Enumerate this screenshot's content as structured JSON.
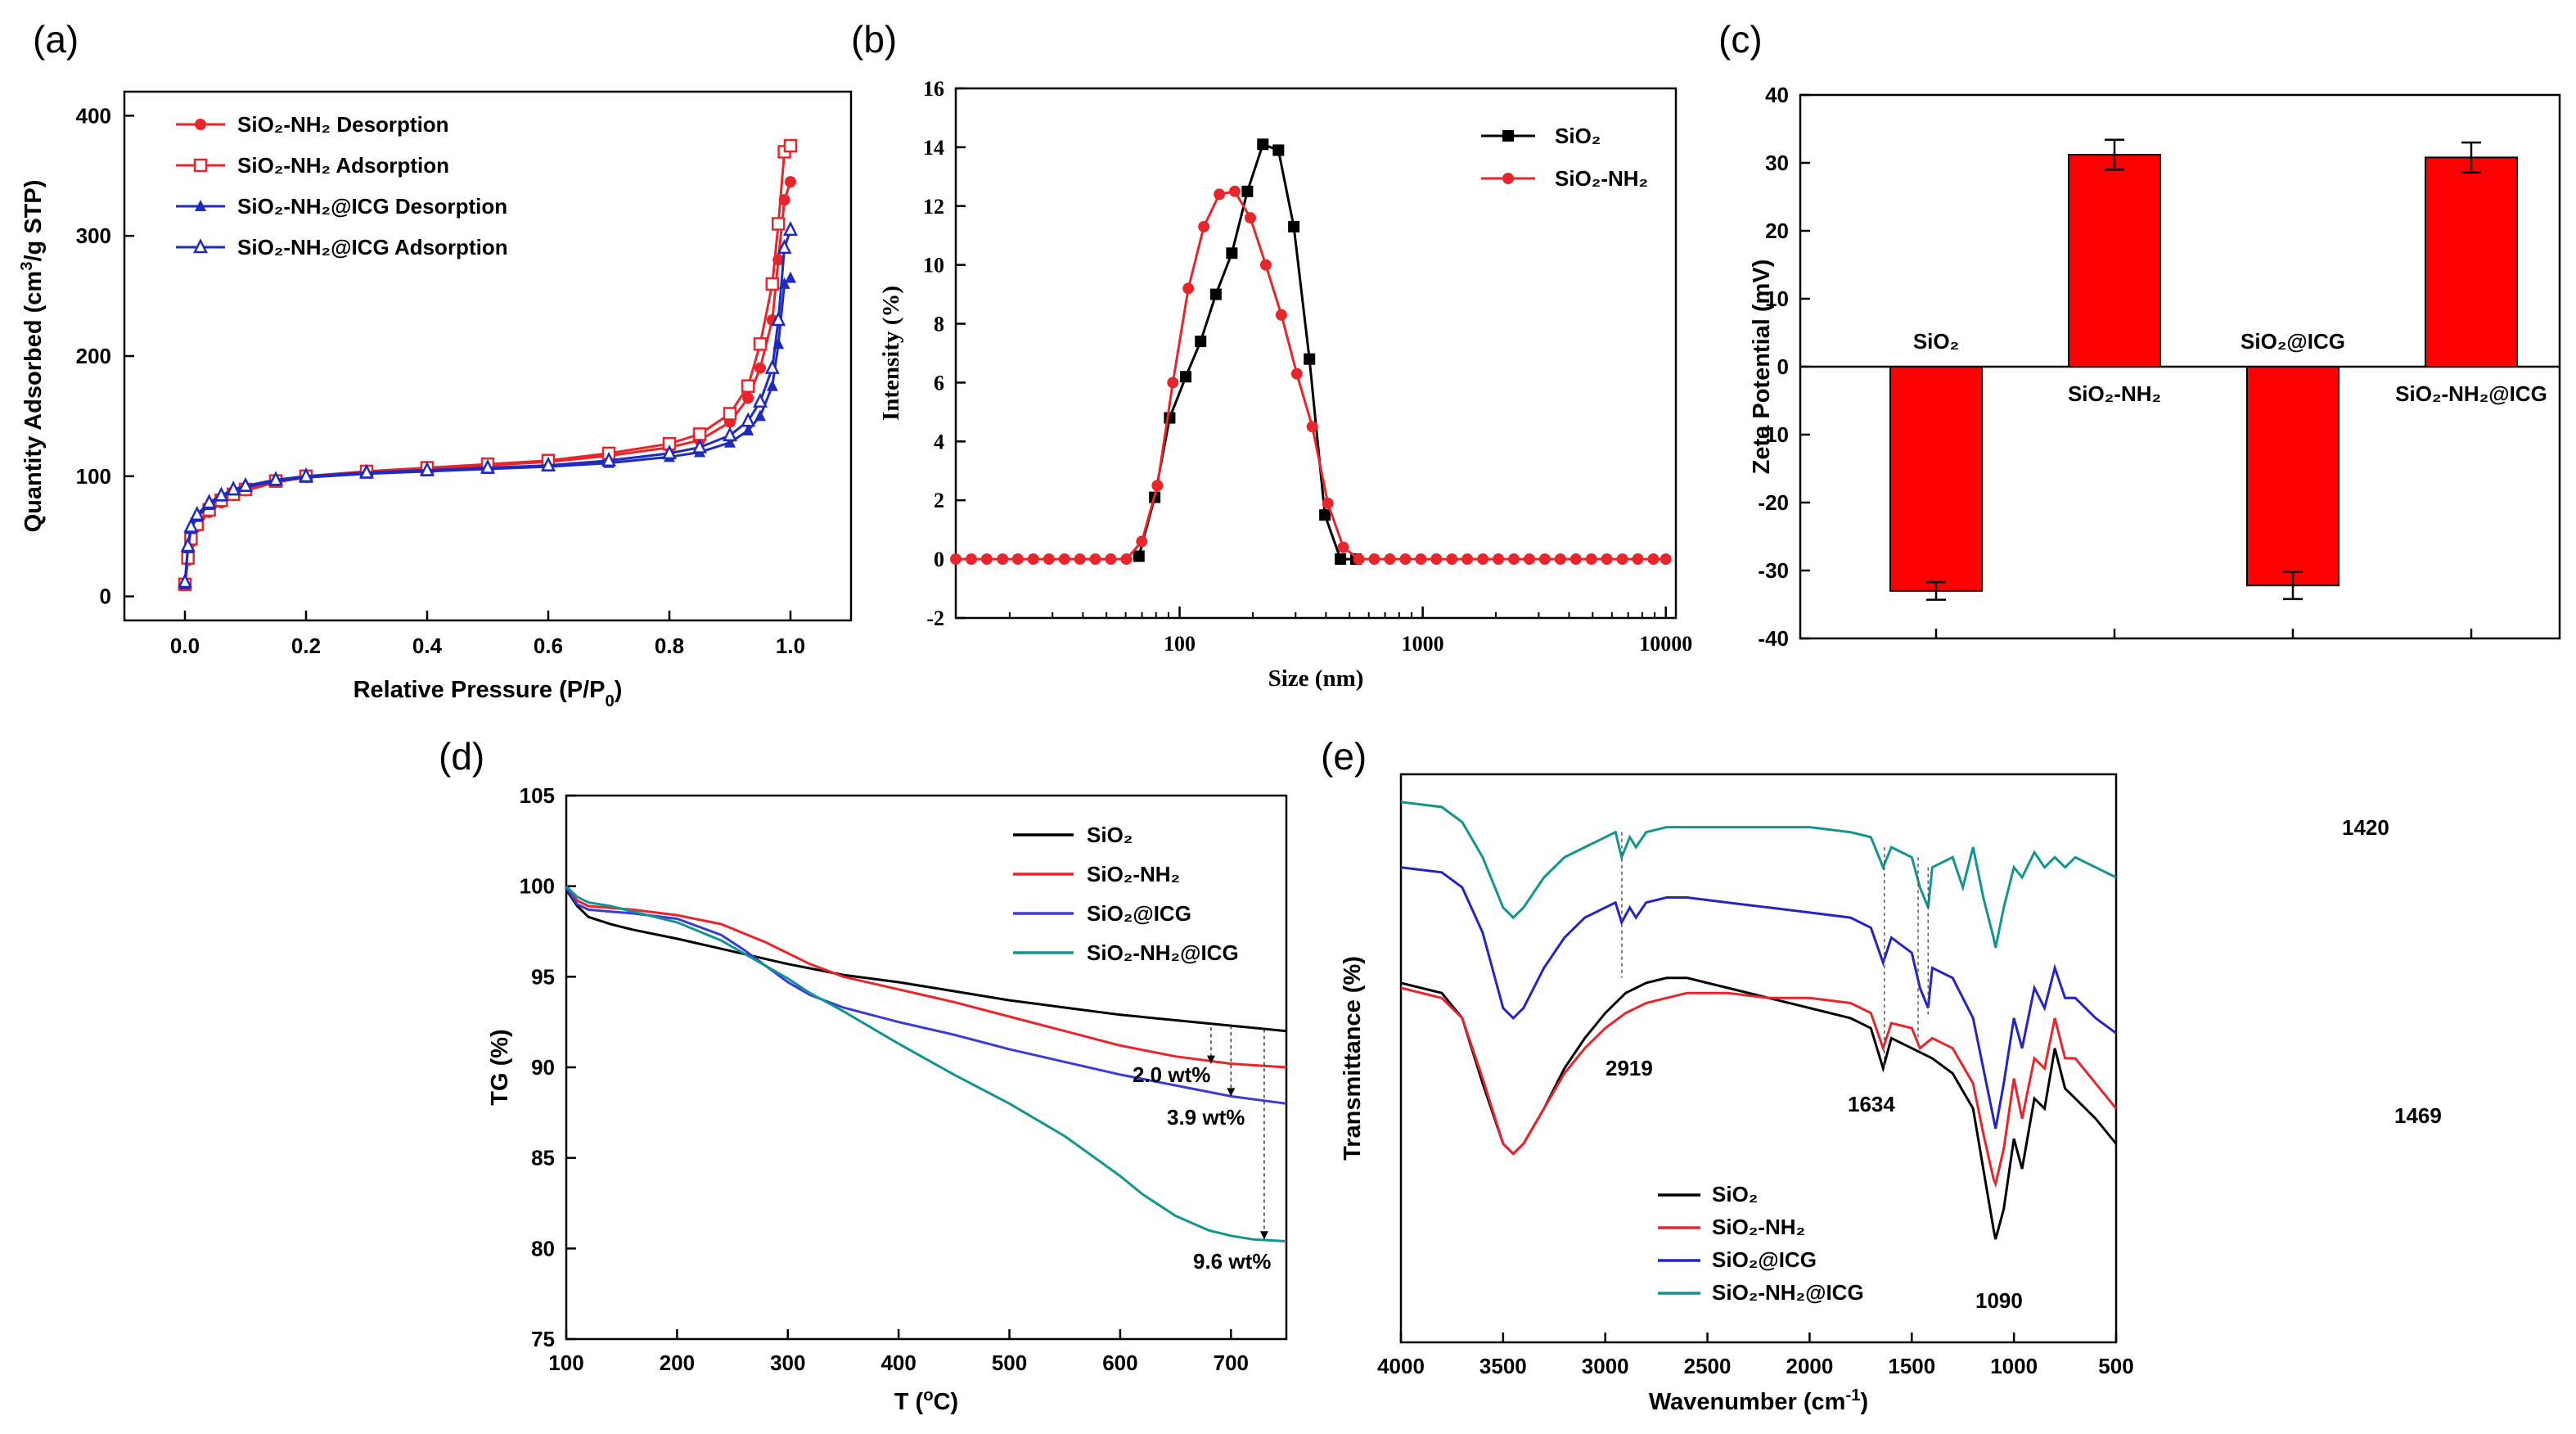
{
  "chart_data": [
    {
      "panel": "a",
      "panel_label": "(a)",
      "type": "line",
      "xlabel": "Relative Pressure (P/P",
      "xlabel_sub": "0",
      "xlabel_end": ")",
      "ylabel": "Quantity Adsorbed (cm",
      "ylabel_sup": "3",
      "ylabel_end": "/g STP)",
      "xlim": [
        -0.1,
        1.1
      ],
      "ylim": [
        -20,
        420
      ],
      "xticks": [
        "0.0",
        "0.2",
        "0.4",
        "0.6",
        "0.8",
        "1.0"
      ],
      "yticks": [
        "0",
        "100",
        "200",
        "300",
        "400"
      ],
      "legend": [
        {
          "label": "SiO₂-NH₂ Desorption",
          "color": "#e8252b",
          "marker": "filled-circle"
        },
        {
          "label": "SiO₂-NH₂ Adsorption",
          "color": "#e8252b",
          "marker": "open-square"
        },
        {
          "label": "SiO₂-NH₂@ICG Desorption",
          "color": "#1f2bbf",
          "marker": "filled-triangle"
        },
        {
          "label": "SiO₂-NH₂@ICG Adsorption",
          "color": "#1f2bbf",
          "marker": "open-triangle"
        }
      ],
      "series": [
        {
          "name": "SiO2-NH2 Desorption",
          "x": [
            0.0,
            0.005,
            0.01,
            0.02,
            0.04,
            0.06,
            0.08,
            0.1,
            0.15,
            0.2,
            0.3,
            0.4,
            0.5,
            0.6,
            0.7,
            0.8,
            0.85,
            0.9,
            0.93,
            0.95,
            0.97,
            0.98,
            0.99,
            1.0
          ],
          "y": [
            10,
            30,
            45,
            58,
            70,
            78,
            84,
            88,
            95,
            99,
            103,
            106,
            109,
            112,
            117,
            124,
            130,
            145,
            165,
            190,
            230,
            280,
            330,
            345
          ]
        },
        {
          "name": "SiO2-NH2 Adsorption",
          "x": [
            0.0,
            0.005,
            0.01,
            0.02,
            0.04,
            0.06,
            0.08,
            0.1,
            0.15,
            0.2,
            0.3,
            0.4,
            0.5,
            0.6,
            0.7,
            0.8,
            0.85,
            0.9,
            0.93,
            0.95,
            0.97,
            0.98,
            0.99,
            1.0
          ],
          "y": [
            10,
            32,
            48,
            60,
            72,
            80,
            85,
            89,
            96,
            100,
            104,
            107,
            110,
            113,
            119,
            127,
            135,
            152,
            175,
            210,
            260,
            310,
            370,
            375
          ]
        },
        {
          "name": "SiO2-NH2@ICG Desorption",
          "x": [
            0.0,
            0.005,
            0.01,
            0.02,
            0.04,
            0.06,
            0.08,
            0.1,
            0.15,
            0.2,
            0.3,
            0.4,
            0.5,
            0.6,
            0.7,
            0.8,
            0.85,
            0.9,
            0.93,
            0.95,
            0.97,
            0.98,
            0.99,
            1.0
          ],
          "y": [
            10,
            40,
            56,
            66,
            76,
            83,
            88,
            91,
            96,
            99,
            102,
            104,
            106,
            108,
            111,
            116,
            120,
            128,
            138,
            150,
            175,
            210,
            260,
            265
          ]
        },
        {
          "name": "SiO2-NH2@ICG Adsorption",
          "x": [
            0.0,
            0.005,
            0.01,
            0.02,
            0.04,
            0.06,
            0.08,
            0.1,
            0.15,
            0.2,
            0.3,
            0.4,
            0.5,
            0.6,
            0.7,
            0.8,
            0.85,
            0.9,
            0.93,
            0.95,
            0.97,
            0.98,
            0.99,
            1.0
          ],
          "y": [
            12,
            42,
            58,
            68,
            78,
            84,
            89,
            92,
            97,
            100,
            103,
            105,
            107,
            109,
            113,
            119,
            124,
            134,
            146,
            162,
            190,
            230,
            290,
            305
          ]
        }
      ]
    },
    {
      "panel": "b",
      "panel_label": "(b)",
      "type": "line",
      "xscale": "log",
      "xlabel": "Size (nm)",
      "ylabel": "Intensity (%)",
      "xlim": [
        12,
        11000
      ],
      "ylim": [
        -2,
        16
      ],
      "xticks": [
        "100",
        "1000",
        "10000"
      ],
      "yticks": [
        "-2",
        "0",
        "2",
        "4",
        "6",
        "8",
        "10",
        "12",
        "14",
        "16"
      ],
      "legend": [
        {
          "label": "SiO₂",
          "color": "#000000",
          "marker": "filled-square"
        },
        {
          "label": "SiO₂-NH₂",
          "color": "#e8252b",
          "marker": "filled-circle"
        }
      ],
      "series": [
        {
          "name": "SiO2",
          "x": [
            68,
            79,
            91,
            106,
            122,
            141,
            164,
            190,
            220,
            255,
            295,
            342,
            396,
            459,
            531
          ],
          "y": [
            0.1,
            2.1,
            4.8,
            6.2,
            7.4,
            9.0,
            10.4,
            12.5,
            14.1,
            13.9,
            11.3,
            6.8,
            1.5,
            0,
            0
          ]
        },
        {
          "name": "SiO2-NH2",
          "x": [
            12,
            13.9,
            16.1,
            18.7,
            21.6,
            25.0,
            29.0,
            33.6,
            38.9,
            45.0,
            52.1,
            60.4,
            69.9,
            81.0,
            93.8,
            108.6,
            125.8,
            145.7,
            168.7,
            195.4,
            226.3,
            262.1,
            303.5,
            351.5,
            407.1,
            471.5,
            546.1,
            632.4,
            732.5,
            848.3,
            982.5,
            1138,
            1318,
            1526,
            1768,
            2047,
            2371,
            2746,
            3180,
            3683,
            4266,
            4941,
            5722,
            6627,
            7675,
            8889,
            10000
          ],
          "y": [
            0,
            0,
            0,
            0,
            0,
            0,
            0,
            0,
            0,
            0,
            0,
            0,
            0.6,
            2.5,
            6.0,
            9.2,
            11.3,
            12.4,
            12.5,
            11.6,
            10.0,
            8.3,
            6.3,
            4.5,
            1.9,
            0.4,
            0,
            0,
            0,
            0,
            0,
            0,
            0,
            0,
            0,
            0,
            0,
            0,
            0,
            0,
            0,
            0,
            0,
            0,
            0,
            0,
            0
          ]
        }
      ]
    },
    {
      "panel": "c",
      "panel_label": "(c)",
      "type": "bar",
      "ylabel": "Zeta Potential (mV)",
      "ylim": [
        -40,
        40
      ],
      "yticks": [
        "-40",
        "-30",
        "-20",
        "-10",
        "0",
        "10",
        "20",
        "30",
        "40"
      ],
      "bar_color": "#ff0000",
      "categories": [
        "SiO₂",
        "SiO₂-NH₂",
        "SiO₂@ICG",
        "SiO₂-NH₂@ICG"
      ],
      "values": [
        -33.0,
        31.2,
        -32.2,
        30.8
      ],
      "errors": [
        1.3,
        2.2,
        2.0,
        2.2
      ]
    },
    {
      "panel": "d",
      "panel_label": "(d)",
      "type": "line",
      "xlabel": "T (",
      "xlabel_sup": "o",
      "xlabel_end": "C)",
      "ylabel": "TG (%)",
      "xlim": [
        100,
        750
      ],
      "ylim": [
        75,
        105
      ],
      "xticks": [
        "100",
        "200",
        "300",
        "400",
        "500",
        "600",
        "700"
      ],
      "yticks": [
        "75",
        "80",
        "85",
        "90",
        "95",
        "100",
        "105"
      ],
      "legend": [
        {
          "label": "SiO₂",
          "color": "#000000"
        },
        {
          "label": "SiO₂-NH₂",
          "color": "#e8252b"
        },
        {
          "label": "SiO₂@ICG",
          "color": "#3b3bd6"
        },
        {
          "label": "SiO₂-NH₂@ICG",
          "color": "#12948f"
        }
      ],
      "annotations": [
        "2.0 wt%",
        "3.9 wt%",
        "9.6 wt%"
      ],
      "series": [
        {
          "name": "SiO2",
          "x": [
            100,
            110,
            120,
            140,
            160,
            200,
            250,
            300,
            350,
            400,
            450,
            500,
            550,
            600,
            650,
            700,
            750
          ],
          "y": [
            99.8,
            98.9,
            98.3,
            97.9,
            97.6,
            97.1,
            96.4,
            95.7,
            95.1,
            94.7,
            94.2,
            93.7,
            93.3,
            92.9,
            92.6,
            92.3,
            92.0
          ]
        },
        {
          "name": "SiO2-NH2",
          "x": [
            100,
            110,
            120,
            140,
            160,
            200,
            240,
            260,
            280,
            300,
            320,
            350,
            400,
            450,
            500,
            550,
            600,
            650,
            700,
            750
          ],
          "y": [
            99.9,
            99.2,
            98.9,
            98.8,
            98.7,
            98.4,
            97.9,
            97.4,
            96.9,
            96.3,
            95.7,
            95.0,
            94.3,
            93.6,
            92.8,
            92.0,
            91.2,
            90.6,
            90.2,
            90.0
          ]
        },
        {
          "name": "SiO2@ICG",
          "x": [
            100,
            110,
            120,
            140,
            160,
            200,
            240,
            260,
            280,
            300,
            320,
            350,
            400,
            450,
            500,
            550,
            600,
            650,
            700,
            750
          ],
          "y": [
            99.9,
            99.0,
            98.7,
            98.6,
            98.5,
            98.2,
            97.3,
            96.5,
            95.6,
            94.7,
            94.0,
            93.3,
            92.5,
            91.8,
            91.0,
            90.3,
            89.6,
            89.0,
            88.4,
            88.0
          ]
        },
        {
          "name": "SiO2-NH2@ICG",
          "x": [
            100,
            110,
            120,
            140,
            160,
            200,
            240,
            260,
            280,
            300,
            320,
            350,
            400,
            450,
            500,
            550,
            600,
            620,
            650,
            680,
            700,
            720,
            750
          ],
          "y": [
            100.0,
            99.4,
            99.1,
            98.9,
            98.6,
            98.0,
            97.0,
            96.3,
            95.6,
            94.9,
            94.1,
            93.1,
            91.3,
            89.6,
            88.0,
            86.2,
            84.0,
            83.0,
            81.8,
            81.0,
            80.7,
            80.5,
            80.4
          ]
        }
      ]
    },
    {
      "panel": "e",
      "panel_label": "(e)",
      "type": "line",
      "xlabel": "Wavenumber (cm",
      "xlabel_sup": "-1",
      "xlabel_end": ")",
      "ylabel": "Transmittance (%)",
      "xlim": [
        4000,
        500
      ],
      "ylim": [
        0,
        100
      ],
      "xticks": [
        "4000",
        "3500",
        "3000",
        "2500",
        "2000",
        "1500",
        "1000",
        "500"
      ],
      "yticks": [],
      "legend": [
        {
          "label": "SiO₂",
          "color": "#000000"
        },
        {
          "label": "SiO₂-NH₂",
          "color": "#e8252b"
        },
        {
          "label": "SiO₂@ICG",
          "color": "#2323c8"
        },
        {
          "label": "SiO₂-NH₂@ICG",
          "color": "#12948f"
        }
      ],
      "peak_labels": [
        "2919",
        "1634",
        "1420",
        "1469",
        "1090"
      ],
      "series": [
        {
          "name": "SiO2",
          "x": [
            4000,
            3800,
            3700,
            3600,
            3500,
            3450,
            3400,
            3300,
            3200,
            3100,
            3000,
            2900,
            2800,
            2700,
            2600,
            2400,
            2200,
            2000,
            1800,
            1700,
            1640,
            1600,
            1500,
            1400,
            1300,
            1200,
            1150,
            1100,
            1090,
            1050,
            1000,
            960,
            900,
            850,
            800,
            750,
            700,
            600,
            500
          ],
          "y": [
            65,
            63,
            58,
            45,
            33,
            31,
            33,
            40,
            48,
            54,
            59,
            63,
            65,
            66,
            66,
            64,
            62,
            60,
            58,
            56,
            48,
            54,
            52,
            50,
            47,
            40,
            28,
            16,
            14,
            20,
            34,
            28,
            42,
            40,
            52,
            44,
            42,
            38,
            33
          ]
        },
        {
          "name": "SiO2-NH2",
          "x": [
            4000,
            3800,
            3700,
            3600,
            3500,
            3450,
            3400,
            3300,
            3200,
            3100,
            3000,
            2900,
            2800,
            2700,
            2600,
            2400,
            2200,
            2000,
            1800,
            1700,
            1640,
            1600,
            1500,
            1460,
            1400,
            1300,
            1200,
            1150,
            1100,
            1090,
            1050,
            1000,
            960,
            900,
            850,
            800,
            750,
            700,
            600,
            500
          ],
          "y": [
            64,
            62,
            58,
            46,
            33,
            31,
            33,
            40,
            47,
            52,
            56,
            59,
            61,
            62,
            63,
            63,
            62,
            62,
            61,
            59,
            52,
            57,
            56,
            52,
            54,
            52,
            45,
            35,
            26,
            25,
            32,
            46,
            38,
            50,
            48,
            58,
            50,
            50,
            45,
            40
          ]
        },
        {
          "name": "SiO2@ICG",
          "x": [
            4000,
            3800,
            3700,
            3600,
            3500,
            3450,
            3400,
            3300,
            3200,
            3100,
            3000,
            2950,
            2920,
            2880,
            2850,
            2800,
            2700,
            2600,
            2400,
            2200,
            2000,
            1800,
            1700,
            1640,
            1600,
            1500,
            1460,
            1420,
            1400,
            1300,
            1200,
            1150,
            1100,
            1090,
            1050,
            1000,
            960,
            900,
            850,
            800,
            750,
            700,
            600,
            500
          ],
          "y": [
            88,
            87,
            84,
            75,
            60,
            58,
            60,
            68,
            74,
            78,
            80,
            81,
            77,
            80,
            78,
            81,
            82,
            82,
            81,
            80,
            79,
            78,
            76,
            69,
            74,
            71,
            64,
            60,
            68,
            66,
            58,
            48,
            38,
            36,
            45,
            58,
            52,
            64,
            60,
            68,
            62,
            62,
            58,
            55
          ]
        },
        {
          "name": "SiO2-NH2@ICG",
          "x": [
            4000,
            3800,
            3700,
            3600,
            3500,
            3450,
            3400,
            3300,
            3200,
            3100,
            3000,
            2950,
            2920,
            2880,
            2850,
            2800,
            2700,
            2600,
            2400,
            2200,
            2000,
            1800,
            1700,
            1640,
            1600,
            1500,
            1460,
            1420,
            1400,
            1300,
            1250,
            1200,
            1150,
            1100,
            1090,
            1050,
            1000,
            960,
            900,
            850,
            800,
            750,
            700,
            600,
            500
          ],
          "y": [
            101,
            100,
            97,
            90,
            80,
            78,
            80,
            86,
            90,
            92,
            94,
            95,
            90,
            94,
            92,
            95,
            96,
            96,
            96,
            96,
            96,
            95,
            94,
            88,
            92,
            90,
            84,
            80,
            88,
            90,
            84,
            92,
            82,
            74,
            72,
            80,
            88,
            86,
            91,
            88,
            90,
            88,
            90,
            88,
            86
          ]
        }
      ]
    }
  ]
}
